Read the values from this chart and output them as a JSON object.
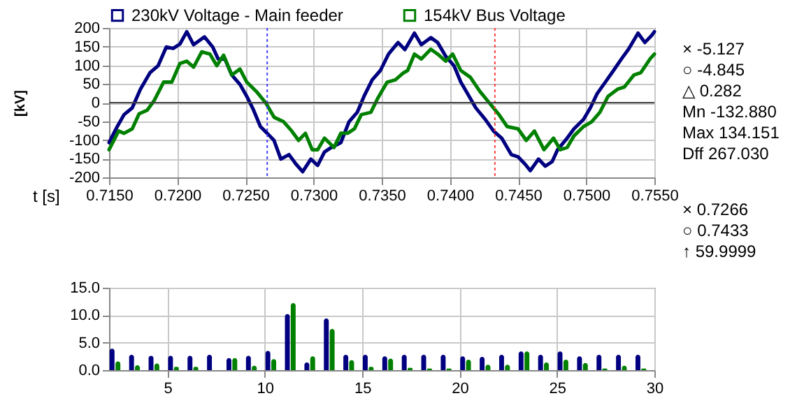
{
  "chart_data": [
    {
      "type": "line",
      "xlabel": "t [s]",
      "ylabel": "[kV]",
      "legend": "top",
      "grid": true,
      "line_style": "solid",
      "marker": "none",
      "xlim": [
        0.715,
        0.755
      ],
      "xticks": [
        {
          "value": 0.715,
          "label": "0.7150"
        },
        {
          "value": 0.72,
          "label": "0.7200"
        },
        {
          "value": 0.725,
          "label": "0.7250"
        },
        {
          "value": 0.73,
          "label": "0.7300"
        },
        {
          "value": 0.735,
          "label": "0.7350"
        },
        {
          "value": 0.74,
          "label": "0.7400"
        },
        {
          "value": 0.745,
          "label": "0.7450"
        },
        {
          "value": 0.75,
          "label": "0.7500"
        },
        {
          "value": 0.755,
          "label": "0.7550"
        }
      ],
      "ylim": [
        -200,
        200
      ],
      "yticks": [
        -200,
        -150,
        -100,
        -50,
        0,
        50,
        100,
        150,
        200
      ],
      "series": [
        {
          "name": "230kV Voltage - Main feeder",
          "color": "#000080",
          "x": [
            0.715,
            0.7156,
            0.7161,
            0.7167,
            0.7173,
            0.718,
            0.7186,
            0.7192,
            0.7197,
            0.7202,
            0.7207,
            0.7212,
            0.722,
            0.7226,
            0.723,
            0.7235,
            0.724,
            0.7246,
            0.7251,
            0.7256,
            0.7261,
            0.7266,
            0.7271,
            0.7276,
            0.7282,
            0.7287,
            0.7292,
            0.7298,
            0.7303,
            0.7308,
            0.7313,
            0.732,
            0.7326,
            0.7332,
            0.7337,
            0.7343,
            0.7349,
            0.7355,
            0.7362,
            0.7367,
            0.7374,
            0.7379,
            0.7386,
            0.7391,
            0.7397,
            0.7403,
            0.7408,
            0.7413,
            0.7419,
            0.7426,
            0.7432,
            0.7438,
            0.7445,
            0.745,
            0.7455,
            0.7459,
            0.7465,
            0.747,
            0.7475,
            0.7479,
            0.7486,
            0.7491,
            0.7498,
            0.7503,
            0.7508,
            0.7514,
            0.752,
            0.7526,
            0.7531,
            0.7538,
            0.7543,
            0.7548,
            0.755
          ],
          "values": [
            -107,
            -64,
            -32,
            -14,
            36,
            80,
            99,
            149,
            145,
            157,
            190,
            155,
            176,
            149,
            117,
            117,
            74,
            49,
            17,
            -20,
            -64,
            -82,
            -101,
            -151,
            -139,
            -164,
            -185,
            -151,
            -168,
            -132,
            -120,
            -107,
            -51,
            -26,
            17,
            61,
            86,
            130,
            161,
            142,
            186,
            155,
            174,
            161,
            124,
            99,
            55,
            24,
            -14,
            -45,
            -76,
            -95,
            -139,
            -145,
            -164,
            -182,
            -151,
            -170,
            -158,
            -126,
            -95,
            -70,
            -45,
            -14,
            24,
            55,
            86,
            118,
            143,
            186,
            161,
            180,
            190
          ]
        },
        {
          "name": "154kV Bus Voltage",
          "color": "#008000",
          "x": [
            0.715,
            0.7157,
            0.7161,
            0.7167,
            0.7172,
            0.7178,
            0.7183,
            0.719,
            0.7196,
            0.7202,
            0.7207,
            0.7212,
            0.7218,
            0.7224,
            0.7229,
            0.7234,
            0.724,
            0.7246,
            0.7251,
            0.7258,
            0.7265,
            0.7271,
            0.7278,
            0.7284,
            0.7289,
            0.7294,
            0.7299,
            0.7303,
            0.7308,
            0.7315,
            0.732,
            0.7325,
            0.733,
            0.7335,
            0.7342,
            0.7347,
            0.7354,
            0.736,
            0.7366,
            0.7369,
            0.7374,
            0.7379,
            0.7386,
            0.7391,
            0.7397,
            0.7402,
            0.7408,
            0.7415,
            0.7422,
            0.7429,
            0.7436,
            0.7442,
            0.745,
            0.7456,
            0.7462,
            0.7469,
            0.7476,
            0.7481,
            0.7486,
            0.7491,
            0.7498,
            0.7504,
            0.751,
            0.7516,
            0.7523,
            0.7528,
            0.7535,
            0.754,
            0.7547,
            0.755
          ],
          "values": [
            -126,
            -76,
            -82,
            -70,
            -30,
            -20,
            5,
            55,
            55,
            105,
            111,
            95,
            136,
            130,
            99,
            127,
            74,
            90,
            55,
            30,
            -1,
            -39,
            -51,
            -76,
            -101,
            -82,
            -126,
            -126,
            -95,
            -120,
            -82,
            -82,
            -70,
            -32,
            -26,
            11,
            55,
            61,
            80,
            86,
            130,
            117,
            143,
            130,
            111,
            130,
            86,
            68,
            30,
            -1,
            -32,
            -64,
            -70,
            -101,
            -76,
            -126,
            -95,
            -126,
            -120,
            -89,
            -64,
            -51,
            -26,
            17,
            36,
            42,
            74,
            80,
            118,
            130
          ]
        }
      ],
      "ref_lines": [
        {
          "axis": "x",
          "value": 0.7266,
          "color": "#4040ff",
          "line_style": "dotted"
        },
        {
          "axis": "x",
          "value": 0.7433,
          "color": "#ff4040",
          "line_style": "dotted"
        },
        {
          "axis": "y",
          "value": 0,
          "color": "#404040",
          "line_style": "solid"
        }
      ],
      "annotations": [
        "× -5.127",
        "○ -4.845",
        "△ 0.282",
        "Mn -132.880",
        "Max 134.151",
        "Dff 267.030",
        "× 0.7266",
        "○ 0.7433",
        "↑ 59.9999"
      ]
    },
    {
      "type": "bar",
      "grid": true,
      "legend": false,
      "xlim": [
        2,
        30
      ],
      "xticks": [
        5,
        10,
        15,
        20,
        25,
        30
      ],
      "ylim": [
        0,
        15
      ],
      "yticks": [
        {
          "value": 0,
          "label": "0.0"
        },
        {
          "value": 5,
          "label": "5.0"
        },
        {
          "value": 10,
          "label": "10.0"
        },
        {
          "value": 15,
          "label": "15.0"
        }
      ],
      "series": [
        {
          "color": "#000080",
          "x": [
            2,
            3,
            4,
            5,
            6,
            7,
            8,
            9,
            10,
            11,
            12,
            13,
            14,
            15,
            16,
            17,
            18,
            19,
            20,
            21,
            22,
            23,
            24,
            25,
            26,
            27,
            28,
            29
          ],
          "values": [
            3.9,
            2.8,
            2.6,
            2.6,
            2.6,
            2.8,
            2.2,
            2.6,
            3.5,
            10.2,
            1.4,
            9.4,
            2.8,
            2.8,
            2.5,
            2.8,
            2.8,
            2.8,
            2.5,
            2.4,
            2.8,
            3.4,
            2.8,
            3.4,
            2.5,
            2.8,
            2.8,
            2.8
          ]
        },
        {
          "color": "#008000",
          "x": [
            2,
            3,
            4,
            5,
            6,
            7,
            8,
            9,
            10,
            11,
            12,
            13,
            14,
            15,
            16,
            17,
            18,
            19,
            20,
            21,
            22,
            23,
            24,
            25,
            26,
            27,
            28,
            29
          ],
          "values": [
            1.6,
            0.9,
            1.2,
            0.6,
            0.6,
            0,
            2.2,
            0.8,
            2.0,
            12.2,
            2.5,
            7.5,
            1.8,
            0.6,
            2.1,
            0.4,
            0.3,
            0.3,
            1.9,
            1.0,
            1.0,
            3.4,
            1.4,
            1.9,
            1.3,
            0.3,
            0.8,
            0.3
          ]
        }
      ]
    }
  ]
}
